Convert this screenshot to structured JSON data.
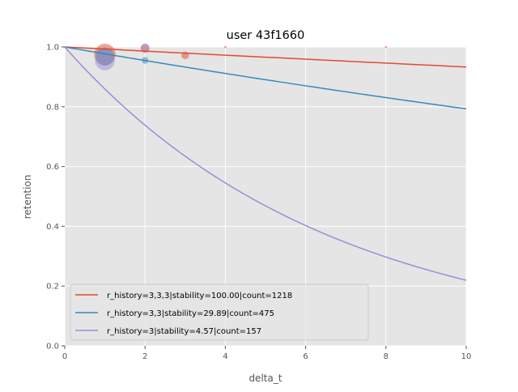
{
  "chart_data": {
    "type": "line",
    "title": "user 43f1660",
    "xlabel": "delta_t",
    "ylabel": "retention",
    "xlim": [
      0,
      10
    ],
    "ylim": [
      0,
      1.0
    ],
    "xticks": [
      "0",
      "2",
      "4",
      "6",
      "8",
      "10"
    ],
    "yticks": [
      "0.0",
      "0.2",
      "0.4",
      "0.6",
      "0.8",
      "1.0"
    ],
    "grid": true,
    "legend_position": "lower-left",
    "series": [
      {
        "name": "r_history=3,3,3|stability=100.00|count=1218",
        "color": "#E24A33",
        "stability": 100.0,
        "points": [
          {
            "x": 1,
            "y": 0.975,
            "size": 700
          },
          {
            "x": 2,
            "y": 0.995,
            "size": 120
          },
          {
            "x": 3,
            "y": 0.972,
            "size": 90
          },
          {
            "x": 4,
            "y": 1.0,
            "size": 8
          },
          {
            "x": 8,
            "y": 1.0,
            "size": 8
          }
        ]
      },
      {
        "name": "r_history=3,3|stability=29.89|count=475",
        "color": "#348ABD",
        "stability": 29.89,
        "points": [
          {
            "x": 1,
            "y": 0.968,
            "size": 500
          },
          {
            "x": 2,
            "y": 0.955,
            "size": 70
          }
        ]
      },
      {
        "name": "r_history=3|stability=4.57|count=157",
        "color": "#988ED5",
        "stability": 4.57,
        "points": [
          {
            "x": 1,
            "y": 0.955,
            "size": 600
          },
          {
            "x": 2,
            "y": 0.998,
            "size": 110
          }
        ]
      }
    ]
  }
}
